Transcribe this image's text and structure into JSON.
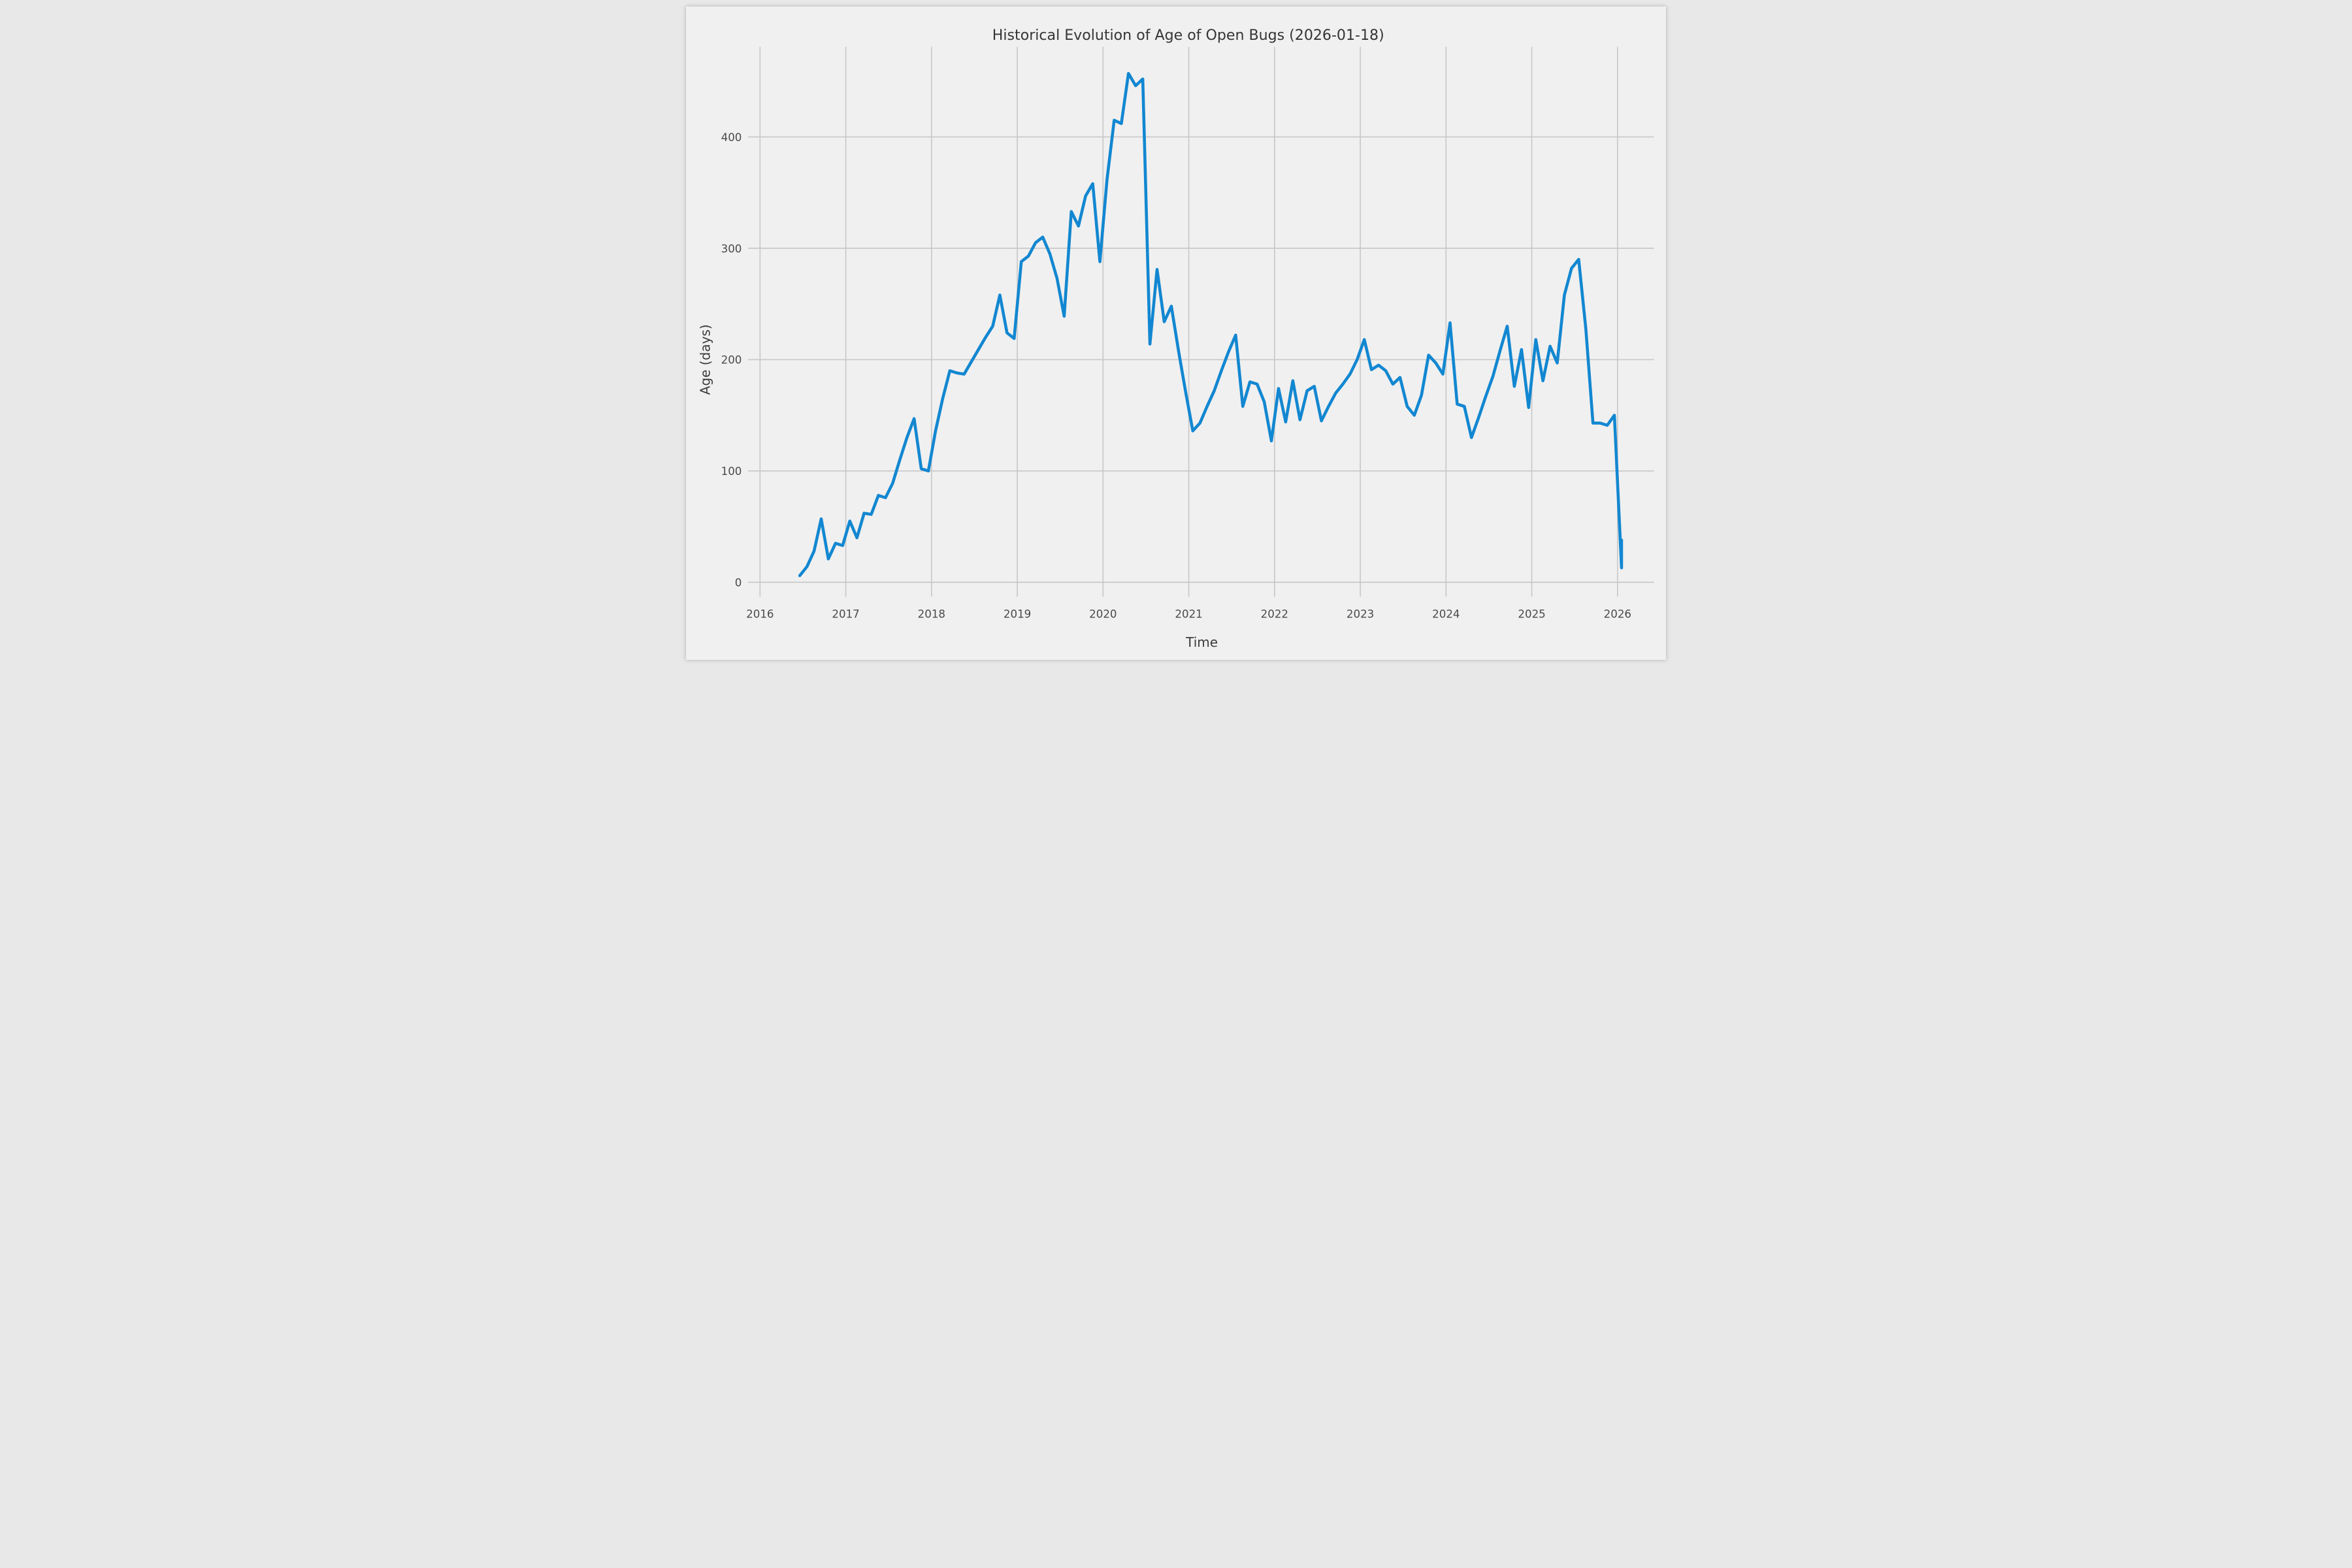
{
  "chart_data": {
    "type": "line",
    "title": "Historical Evolution of Age of Open Bugs (2026-01-18)",
    "xlabel": "Time",
    "ylabel": "Age (days)",
    "x_tick_labels": [
      "2016",
      "2017",
      "2018",
      "2019",
      "2020",
      "2021",
      "2022",
      "2023",
      "2024",
      "2025",
      "2026"
    ],
    "y_tick_labels": [
      "0",
      "100",
      "200",
      "300",
      "400"
    ],
    "y_tick_values": [
      0,
      100,
      200,
      300,
      400
    ],
    "xlim_years": [
      2015.87,
      2026.35
    ],
    "ylim": [
      -13,
      481
    ],
    "grid": true,
    "legend": "none",
    "line_color": "#1287d1",
    "background_color": "#f0f0f0",
    "grid_color": "#c8c8c8",
    "series_name": "Age of open bugs (days)",
    "points": [
      [
        "2016-06",
        6
      ],
      [
        "2016-07",
        14
      ],
      [
        "2016-08",
        28
      ],
      [
        "2016-09",
        57
      ],
      [
        "2016-10",
        21
      ],
      [
        "2016-11",
        35
      ],
      [
        "2016-12",
        33
      ],
      [
        "2017-01",
        55
      ],
      [
        "2017-02",
        40
      ],
      [
        "2017-03",
        62
      ],
      [
        "2017-04",
        61
      ],
      [
        "2017-05",
        78
      ],
      [
        "2017-06",
        76
      ],
      [
        "2017-07",
        89
      ],
      [
        "2017-08",
        110
      ],
      [
        "2017-09",
        130
      ],
      [
        "2017-10",
        147
      ],
      [
        "2017-11",
        102
      ],
      [
        "2017-12",
        100
      ],
      [
        "2018-01",
        136
      ],
      [
        "2018-02",
        165
      ],
      [
        "2018-03",
        190
      ],
      [
        "2018-04",
        188
      ],
      [
        "2018-05",
        187
      ],
      [
        "2018-06",
        198
      ],
      [
        "2018-07",
        209
      ],
      [
        "2018-08",
        220
      ],
      [
        "2018-09",
        230
      ],
      [
        "2018-10",
        258
      ],
      [
        "2018-11",
        224
      ],
      [
        "2018-12",
        219
      ],
      [
        "2019-01",
        288
      ],
      [
        "2019-02",
        293
      ],
      [
        "2019-03",
        305
      ],
      [
        "2019-04",
        310
      ],
      [
        "2019-05",
        295
      ],
      [
        "2019-06",
        273
      ],
      [
        "2019-07",
        239
      ],
      [
        "2019-08",
        333
      ],
      [
        "2019-09",
        320
      ],
      [
        "2019-10",
        347
      ],
      [
        "2019-11",
        358
      ],
      [
        "2019-12",
        288
      ],
      [
        "2020-01",
        362
      ],
      [
        "2020-02",
        415
      ],
      [
        "2020-03",
        412
      ],
      [
        "2020-04",
        457
      ],
      [
        "2020-05",
        446
      ],
      [
        "2020-06",
        452
      ],
      [
        "2020-07",
        214
      ],
      [
        "2020-08",
        281
      ],
      [
        "2020-09",
        234
      ],
      [
        "2020-10",
        248
      ],
      [
        "2020-11",
        208
      ],
      [
        "2020-12",
        171
      ],
      [
        "2021-01",
        136
      ],
      [
        "2021-02",
        143
      ],
      [
        "2021-03",
        158
      ],
      [
        "2021-04",
        172
      ],
      [
        "2021-05",
        190
      ],
      [
        "2021-06",
        207
      ],
      [
        "2021-07",
        222
      ],
      [
        "2021-08",
        158
      ],
      [
        "2021-09",
        180
      ],
      [
        "2021-10",
        178
      ],
      [
        "2021-11",
        162
      ],
      [
        "2021-12",
        127
      ],
      [
        "2022-01",
        174
      ],
      [
        "2022-02",
        144
      ],
      [
        "2022-03",
        181
      ],
      [
        "2022-04",
        146
      ],
      [
        "2022-05",
        172
      ],
      [
        "2022-06",
        176
      ],
      [
        "2022-07",
        145
      ],
      [
        "2022-08",
        158
      ],
      [
        "2022-09",
        170
      ],
      [
        "2022-10",
        178
      ],
      [
        "2022-11",
        187
      ],
      [
        "2022-12",
        200
      ],
      [
        "2023-01",
        218
      ],
      [
        "2023-02",
        191
      ],
      [
        "2023-03",
        195
      ],
      [
        "2023-04",
        190
      ],
      [
        "2023-05",
        178
      ],
      [
        "2023-06",
        184
      ],
      [
        "2023-07",
        158
      ],
      [
        "2023-08",
        150
      ],
      [
        "2023-09",
        168
      ],
      [
        "2023-10",
        204
      ],
      [
        "2023-11",
        197
      ],
      [
        "2023-12",
        187
      ],
      [
        "2024-01",
        233
      ],
      [
        "2024-02",
        160
      ],
      [
        "2024-03",
        158
      ],
      [
        "2024-04",
        130
      ],
      [
        "2024-05",
        148
      ],
      [
        "2024-06",
        167
      ],
      [
        "2024-07",
        185
      ],
      [
        "2024-08",
        208
      ],
      [
        "2024-09",
        230
      ],
      [
        "2024-10",
        176
      ],
      [
        "2024-11",
        209
      ],
      [
        "2024-12",
        157
      ],
      [
        "2025-01",
        218
      ],
      [
        "2025-02",
        181
      ],
      [
        "2025-03",
        212
      ],
      [
        "2025-04",
        197
      ],
      [
        "2025-05",
        258
      ],
      [
        "2025-06",
        282
      ],
      [
        "2025-07",
        290
      ],
      [
        "2025-08",
        228
      ],
      [
        "2025-09",
        143
      ],
      [
        "2025-10",
        143
      ],
      [
        "2025-11",
        141
      ],
      [
        "2025-12",
        150
      ],
      [
        "2026-01",
        13
      ],
      [
        "2026-01-18",
        38
      ]
    ]
  }
}
